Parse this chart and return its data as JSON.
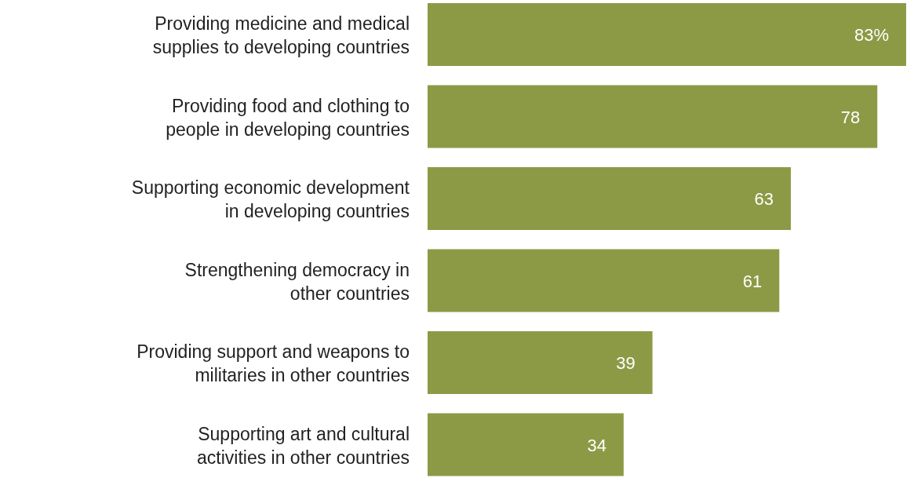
{
  "chart_data": {
    "type": "bar",
    "orientation": "horizontal",
    "categories": [
      "Providing medicine and medical\nsupplies to developing countries",
      "Providing food and clothing to\npeople in developing countries",
      "Supporting economic development\nin developing countries",
      "Strengthening democracy in\nother countries",
      "Providing support and weapons to\nmilitaries in other countries",
      "Supporting art and cultural\nactivities in other countries"
    ],
    "values": [
      83,
      78,
      63,
      61,
      39,
      34
    ],
    "value_labels": [
      "83%",
      "78",
      "63",
      "61",
      "39",
      "34"
    ],
    "color": "#8c9a46"
  }
}
